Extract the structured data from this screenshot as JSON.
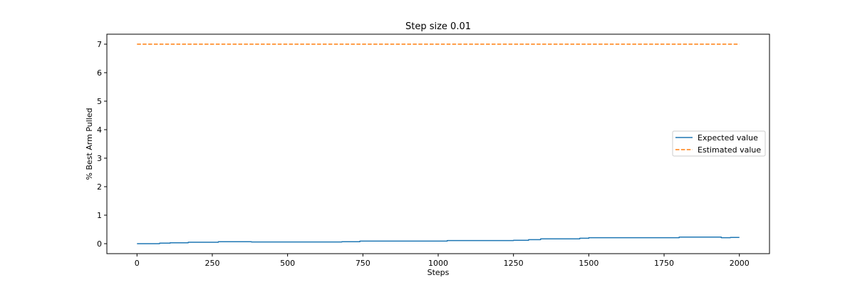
{
  "chart_data": {
    "type": "line",
    "title": "Step size 0.01",
    "xlabel": "Steps",
    "ylabel": "% Best Arm Pulled",
    "xlim": [
      -100,
      2100
    ],
    "ylim": [
      -0.35,
      7.35
    ],
    "xticks": [
      0,
      250,
      500,
      750,
      1000,
      1250,
      1500,
      1750,
      2000
    ],
    "yticks": [
      0,
      1,
      2,
      3,
      4,
      5,
      6,
      7
    ],
    "legend_position": "center-right",
    "grid": false,
    "series": [
      {
        "name": "Expected value",
        "color": "#1f77b4",
        "style": "solid",
        "points": [
          [
            0,
            0.0
          ],
          [
            75,
            0.0
          ],
          [
            75,
            0.02
          ],
          [
            110,
            0.02
          ],
          [
            110,
            0.03
          ],
          [
            170,
            0.03
          ],
          [
            170,
            0.05
          ],
          [
            270,
            0.05
          ],
          [
            270,
            0.07
          ],
          [
            380,
            0.07
          ],
          [
            380,
            0.06
          ],
          [
            680,
            0.06
          ],
          [
            680,
            0.07
          ],
          [
            740,
            0.07
          ],
          [
            740,
            0.09
          ],
          [
            1030,
            0.09
          ],
          [
            1030,
            0.11
          ],
          [
            1250,
            0.11
          ],
          [
            1250,
            0.12
          ],
          [
            1300,
            0.12
          ],
          [
            1300,
            0.14
          ],
          [
            1340,
            0.14
          ],
          [
            1340,
            0.17
          ],
          [
            1470,
            0.17
          ],
          [
            1470,
            0.19
          ],
          [
            1500,
            0.19
          ],
          [
            1500,
            0.21
          ],
          [
            1800,
            0.21
          ],
          [
            1800,
            0.23
          ],
          [
            1940,
            0.23
          ],
          [
            1940,
            0.21
          ],
          [
            1970,
            0.21
          ],
          [
            1970,
            0.22
          ],
          [
            2000,
            0.22
          ]
        ]
      },
      {
        "name": "Estimated value",
        "color": "#ff7f0e",
        "style": "dashed",
        "points": [
          [
            0,
            7.0
          ],
          [
            2000,
            7.0
          ]
        ]
      }
    ]
  }
}
